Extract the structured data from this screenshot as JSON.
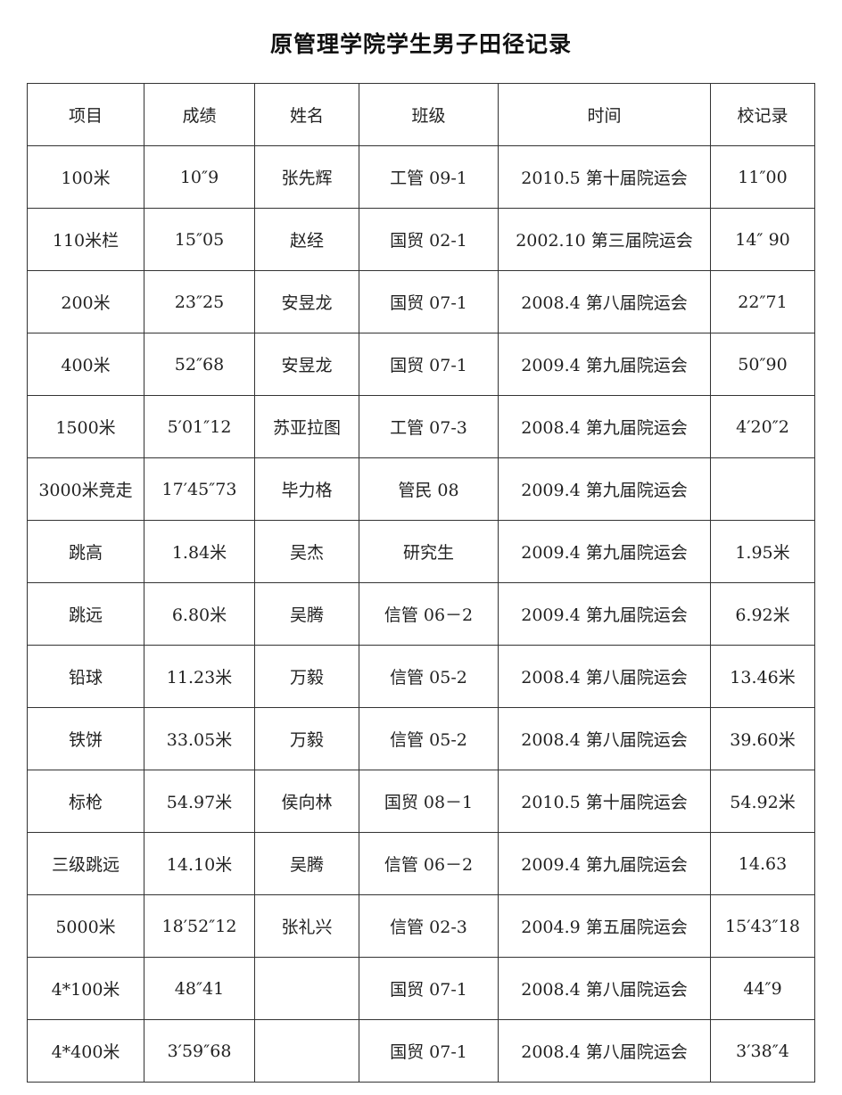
{
  "title": "原管理学院学生男子田径记录",
  "table": {
    "headers": [
      "项目",
      "成绩",
      "姓名",
      "班级",
      "时间",
      "校记录"
    ],
    "rows": [
      [
        "100米",
        "10″9",
        "张先辉",
        "工管 09-1",
        "2010.5 第十届院运会",
        "11″00"
      ],
      [
        "110米栏",
        "15″05",
        "赵经",
        "国贸 02-1",
        "2002.10 第三届院运会",
        "14″ 90"
      ],
      [
        "200米",
        "23″25",
        "安昱龙",
        "国贸 07-1",
        "2008.4 第八届院运会",
        "22″71"
      ],
      [
        "400米",
        "52″68",
        "安昱龙",
        "国贸 07-1",
        "2009.4 第九届院运会",
        "50″90"
      ],
      [
        "1500米",
        "5′01″12",
        "苏亚拉图",
        "工管 07-3",
        "2008.4 第九届院运会",
        "4′20″2"
      ],
      [
        "3000米竞走",
        "17′45″73",
        "毕力格",
        "管民 08",
        "2009.4 第九届院运会",
        ""
      ],
      [
        "跳高",
        "1.84米",
        "吴杰",
        "研究生",
        "2009.4 第九届院运会",
        "1.95米"
      ],
      [
        "跳远",
        "6.80米",
        "吴腾",
        "信管 06－2",
        "2009.4 第九届院运会",
        "6.92米"
      ],
      [
        "铅球",
        "11.23米",
        "万毅",
        "信管 05-2",
        "2008.4 第八届院运会",
        "13.46米"
      ],
      [
        "铁饼",
        "33.05米",
        "万毅",
        "信管 05-2",
        "2008.4 第八届院运会",
        "39.60米"
      ],
      [
        "标枪",
        "54.97米",
        "侯向林",
        "国贸 08－1",
        "2010.5 第十届院运会",
        "54.92米"
      ],
      [
        "三级跳远",
        "14.10米",
        "吴腾",
        "信管 06－2",
        "2009.4 第九届院运会",
        "14.63"
      ],
      [
        "5000米",
        "18′52″12",
        "张礼兴",
        "信管 02-3",
        "2004.9 第五届院运会",
        "15′43″18"
      ],
      [
        "4*100米",
        "48″41",
        "",
        "国贸 07-1",
        "2008.4 第八届院运会",
        "44″9"
      ],
      [
        "4*400米",
        "3′59″68",
        "",
        "国贸 07-1",
        "2008.4 第八届院运会",
        "3′38″4"
      ]
    ]
  }
}
